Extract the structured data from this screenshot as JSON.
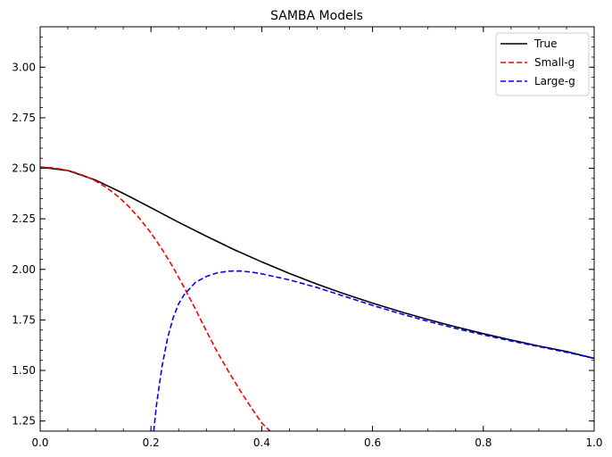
{
  "chart_data": {
    "type": "line",
    "title": "SAMBA Models",
    "xlabel": "",
    "ylabel": "",
    "xlim": [
      0.0,
      1.0
    ],
    "ylim": [
      1.2,
      3.2
    ],
    "grid": false,
    "legend_position": "top-right",
    "x_ticks": [
      "0.0",
      "0.2",
      "0.4",
      "0.6",
      "0.8",
      "1.0"
    ],
    "y_ticks": [
      "1.25",
      "1.50",
      "1.75",
      "2.00",
      "2.25",
      "2.50",
      "2.75",
      "3.00"
    ],
    "series": [
      {
        "name": "True",
        "color": "#000000",
        "style": "solid",
        "x": [
          0.0,
          0.05,
          0.1,
          0.15,
          0.2,
          0.25,
          0.3,
          0.35,
          0.4,
          0.45,
          0.5,
          0.55,
          0.6,
          0.65,
          0.7,
          0.75,
          0.8,
          0.85,
          0.9,
          0.95,
          1.0
        ],
        "y": [
          2.506,
          2.489,
          2.442,
          2.376,
          2.305,
          2.233,
          2.164,
          2.098,
          2.037,
          1.98,
          1.927,
          1.878,
          1.833,
          1.791,
          1.752,
          1.716,
          1.682,
          1.651,
          1.621,
          1.594,
          1.56
        ]
      },
      {
        "name": "Small-g",
        "color": "#ff0000",
        "style": "dashed",
        "x": [
          0.0,
          0.02,
          0.04,
          0.06,
          0.08,
          0.1,
          0.12,
          0.14,
          0.16,
          0.18,
          0.2,
          0.22,
          0.24,
          0.26,
          0.28,
          0.3,
          0.32,
          0.34,
          0.36,
          0.38,
          0.4,
          0.415
        ],
        "y": [
          2.506,
          2.503,
          2.495,
          2.482,
          2.463,
          2.437,
          2.404,
          2.362,
          2.311,
          2.25,
          2.18,
          2.1,
          2.01,
          1.91,
          1.805,
          1.695,
          1.59,
          1.495,
          1.405,
          1.32,
          1.24,
          1.2
        ]
      },
      {
        "name": "Large-g",
        "color": "#0000ff",
        "style": "dashed",
        "x": [
          0.205,
          0.21,
          0.22,
          0.23,
          0.24,
          0.25,
          0.26,
          0.28,
          0.3,
          0.32,
          0.34,
          0.36,
          0.38,
          0.4,
          0.45,
          0.5,
          0.55,
          0.6,
          0.65,
          0.7,
          0.75,
          0.8,
          0.85,
          0.9,
          0.95,
          1.0
        ],
        "y": [
          1.2,
          1.33,
          1.52,
          1.66,
          1.76,
          1.83,
          1.875,
          1.935,
          1.965,
          1.983,
          1.991,
          1.992,
          1.987,
          1.978,
          1.948,
          1.91,
          1.866,
          1.822,
          1.781,
          1.743,
          1.708,
          1.676,
          1.646,
          1.618,
          1.59,
          1.56
        ]
      }
    ]
  }
}
